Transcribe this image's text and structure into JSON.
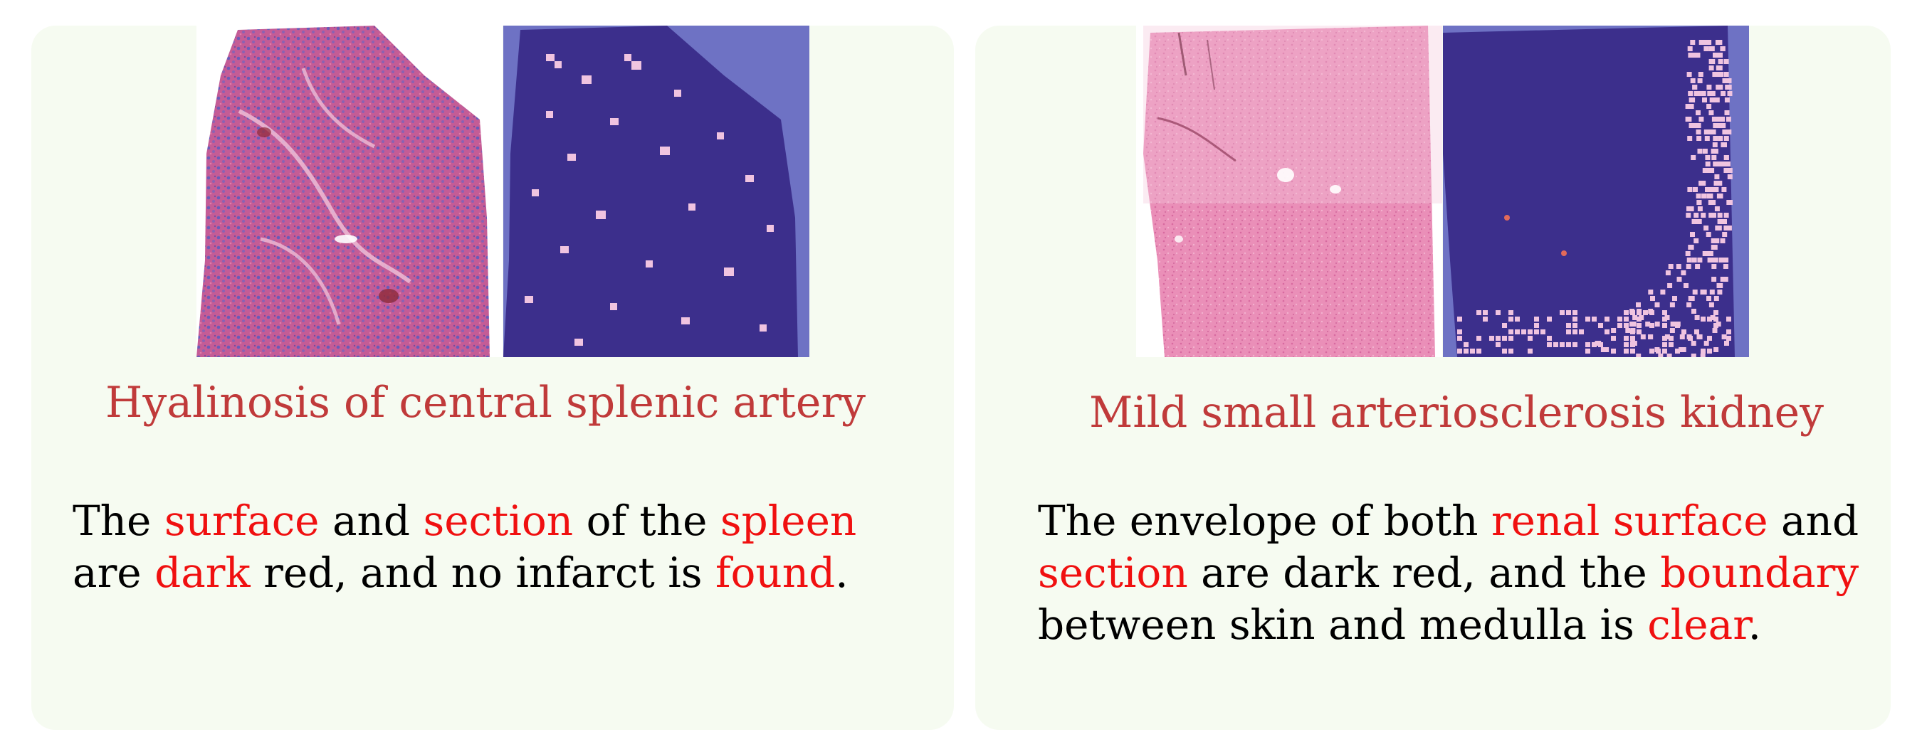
{
  "figure": {
    "panels": [
      {
        "caption": "Hyalinosis of central splenic artery",
        "images": {
          "he_tissue": "H&E whole-slide thumbnail of spleen tissue",
          "heatmap": "Blue overlay with pink highlighted patches"
        },
        "description": {
          "s1": "The ",
          "k1": "surface",
          "s2": " and ",
          "k2": "section",
          "s3": " of the ",
          "k3": "spleen",
          "s4": " are ",
          "k4": "dark",
          "s5": " red, and no infarct is ",
          "k5": "found",
          "s6": "."
        }
      },
      {
        "caption": "Mild small arteriosclerosis kidney",
        "images": {
          "he_tissue": "H&E whole-slide thumbnail of kidney tissue",
          "heatmap": "Blue overlay with pink highlighted patches along right edge"
        },
        "description": {
          "s1": "The envelope of both ",
          "k1": "renal surface",
          "s2": " and ",
          "k2": "section",
          "s3": " are dark red, and the ",
          "k3": "boundary",
          "s4": " between skin and medulla is ",
          "k4": "clear",
          "s5": "."
        }
      }
    ]
  },
  "colors": {
    "panel_background": "#f6fbf1",
    "caption_color": "#c03a3a",
    "keyword_color": "#f01010",
    "body_text": "#000000",
    "heatmap_base": "#6e72c4",
    "heatmap_highlight": "#f0c4e0",
    "he_pink": "#e58fb6"
  }
}
